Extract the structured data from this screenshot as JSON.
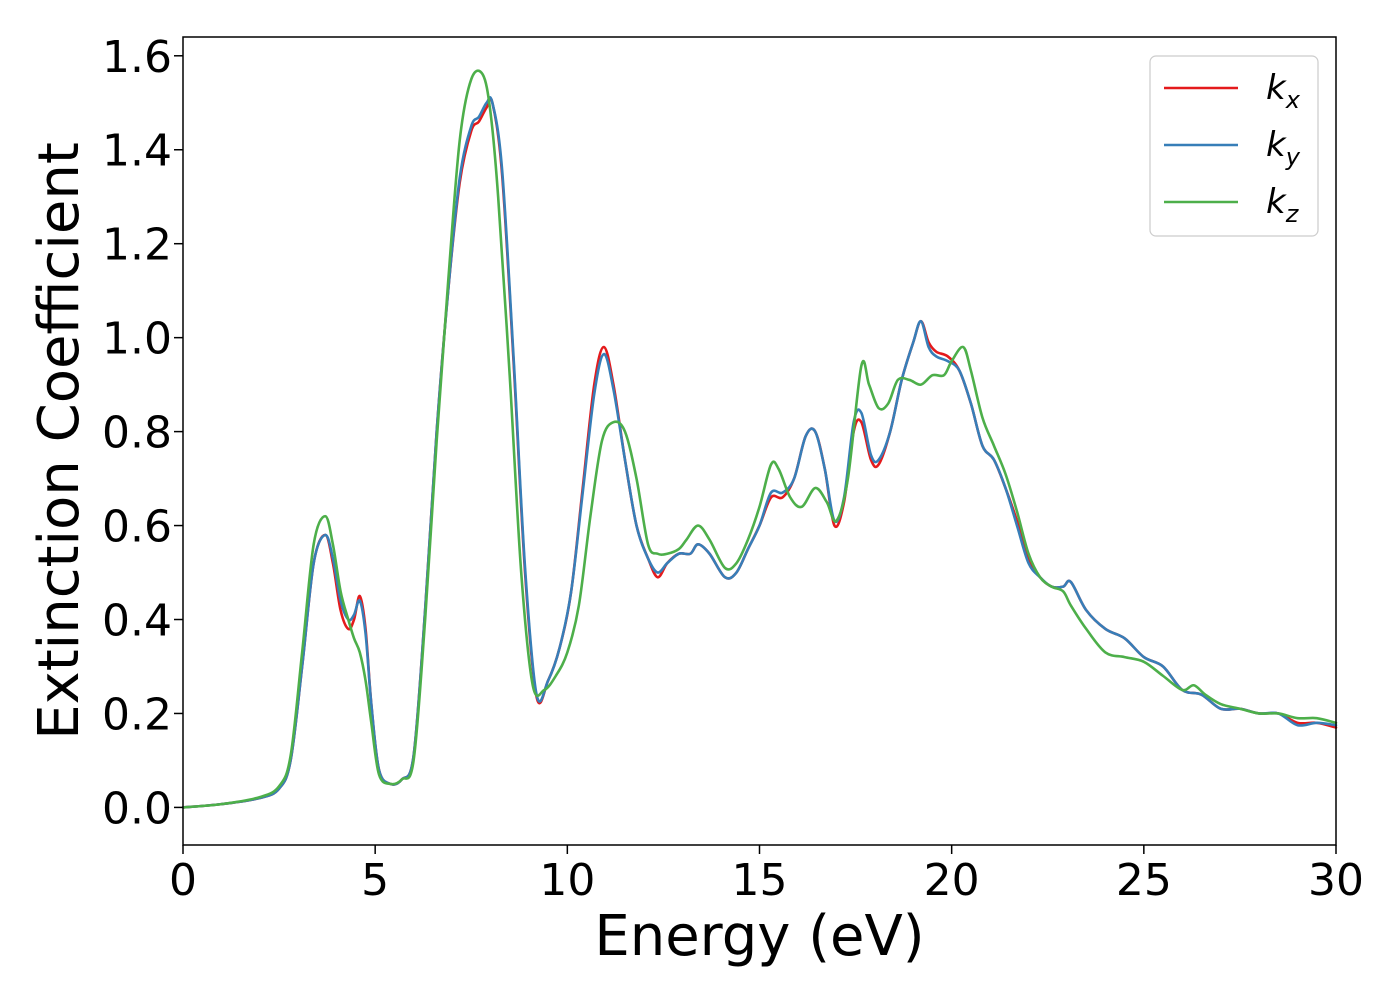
{
  "chart_data": {
    "type": "line",
    "title": "",
    "xlabel": "Energy (eV)",
    "ylabel": "Extinction Coefficient",
    "xlim": [
      0,
      30
    ],
    "ylim": [
      -0.08,
      1.64
    ],
    "xticks": [
      0,
      5,
      10,
      15,
      20,
      25,
      30
    ],
    "xtick_labels": [
      "0",
      "5",
      "10",
      "15",
      "20",
      "25",
      "30"
    ],
    "yticks": [
      0.0,
      0.2,
      0.4,
      0.6,
      0.8,
      1.0,
      1.2,
      1.4,
      1.6
    ],
    "ytick_labels": [
      "0.0",
      "0.2",
      "0.4",
      "0.6",
      "0.8",
      "1.0",
      "1.2",
      "1.4",
      "1.6"
    ],
    "grid": false,
    "legend_position": "top-right",
    "series": [
      {
        "name": "kx",
        "label_base": "k",
        "label_sub": "x",
        "color": "#e41a1c",
        "x": [
          0,
          1,
          2,
          2.5,
          2.8,
          3.1,
          3.4,
          3.7,
          3.9,
          4.1,
          4.3,
          4.45,
          4.6,
          4.75,
          4.9,
          5.1,
          5.4,
          5.7,
          6.0,
          6.3,
          6.6,
          6.9,
          7.2,
          7.5,
          7.7,
          7.9,
          8.05,
          8.3,
          8.6,
          8.9,
          9.2,
          9.5,
          9.8,
          10.1,
          10.4,
          10.7,
          10.95,
          11.2,
          11.5,
          11.8,
          12.1,
          12.35,
          12.6,
          12.9,
          13.2,
          13.4,
          13.7,
          14.1,
          14.4,
          14.7,
          15.0,
          15.3,
          15.6,
          15.9,
          16.2,
          16.45,
          16.7,
          16.95,
          17.2,
          17.45,
          17.65,
          17.9,
          18.1,
          18.4,
          18.7,
          19.0,
          19.2,
          19.4,
          19.6,
          19.9,
          20.2,
          20.5,
          20.8,
          21.1,
          21.4,
          21.7,
          22.0,
          22.3,
          22.6,
          22.9,
          23.1,
          23.5,
          24.0,
          24.5,
          25.0,
          25.5,
          26.0,
          26.5,
          27.0,
          27.5,
          28.0,
          28.5,
          29.0,
          29.5,
          30.0
        ],
        "values": [
          0.0,
          0.007,
          0.02,
          0.04,
          0.1,
          0.3,
          0.52,
          0.58,
          0.52,
          0.42,
          0.38,
          0.4,
          0.45,
          0.38,
          0.22,
          0.08,
          0.05,
          0.06,
          0.11,
          0.42,
          0.8,
          1.1,
          1.33,
          1.44,
          1.46,
          1.49,
          1.5,
          1.35,
          0.95,
          0.5,
          0.235,
          0.27,
          0.34,
          0.46,
          0.68,
          0.9,
          0.98,
          0.9,
          0.74,
          0.6,
          0.53,
          0.49,
          0.52,
          0.54,
          0.54,
          0.56,
          0.54,
          0.49,
          0.5,
          0.55,
          0.6,
          0.66,
          0.66,
          0.7,
          0.79,
          0.8,
          0.72,
          0.6,
          0.65,
          0.8,
          0.82,
          0.74,
          0.73,
          0.8,
          0.91,
          0.99,
          1.035,
          0.99,
          0.97,
          0.96,
          0.93,
          0.86,
          0.77,
          0.74,
          0.68,
          0.61,
          0.53,
          0.49,
          0.47,
          0.47,
          0.48,
          0.42,
          0.38,
          0.36,
          0.32,
          0.3,
          0.25,
          0.24,
          0.21,
          0.21,
          0.2,
          0.2,
          0.18,
          0.18,
          0.17
        ]
      },
      {
        "name": "ky",
        "label_base": "k",
        "label_sub": "y",
        "color": "#377eb8",
        "x": [
          0,
          1,
          2,
          2.5,
          2.8,
          3.1,
          3.4,
          3.7,
          3.9,
          4.1,
          4.3,
          4.45,
          4.6,
          4.75,
          4.9,
          5.1,
          5.4,
          5.7,
          6.0,
          6.3,
          6.6,
          6.9,
          7.2,
          7.5,
          7.7,
          7.9,
          8.05,
          8.3,
          8.6,
          8.9,
          9.2,
          9.5,
          9.8,
          10.1,
          10.4,
          10.7,
          10.95,
          11.2,
          11.5,
          11.8,
          12.1,
          12.35,
          12.6,
          12.9,
          13.2,
          13.4,
          13.7,
          14.1,
          14.4,
          14.7,
          15.0,
          15.3,
          15.6,
          15.9,
          16.2,
          16.45,
          16.7,
          16.95,
          17.2,
          17.45,
          17.65,
          17.9,
          18.1,
          18.4,
          18.7,
          19.0,
          19.2,
          19.4,
          19.6,
          19.9,
          20.2,
          20.5,
          20.8,
          21.1,
          21.4,
          21.7,
          22.0,
          22.3,
          22.6,
          22.9,
          23.1,
          23.5,
          24.0,
          24.5,
          25.0,
          25.5,
          26.0,
          26.5,
          27.0,
          27.5,
          28.0,
          28.5,
          29.0,
          29.5,
          30.0
        ],
        "values": [
          0.0,
          0.007,
          0.02,
          0.04,
          0.1,
          0.3,
          0.52,
          0.58,
          0.53,
          0.44,
          0.4,
          0.41,
          0.44,
          0.37,
          0.22,
          0.08,
          0.05,
          0.06,
          0.11,
          0.42,
          0.8,
          1.1,
          1.34,
          1.45,
          1.47,
          1.5,
          1.5,
          1.36,
          0.96,
          0.51,
          0.24,
          0.27,
          0.34,
          0.46,
          0.67,
          0.88,
          0.965,
          0.89,
          0.74,
          0.6,
          0.53,
          0.5,
          0.52,
          0.54,
          0.54,
          0.56,
          0.54,
          0.49,
          0.5,
          0.55,
          0.6,
          0.67,
          0.67,
          0.7,
          0.79,
          0.8,
          0.72,
          0.61,
          0.66,
          0.82,
          0.84,
          0.75,
          0.74,
          0.8,
          0.91,
          0.99,
          1.035,
          0.98,
          0.96,
          0.95,
          0.93,
          0.86,
          0.77,
          0.74,
          0.68,
          0.6,
          0.52,
          0.49,
          0.47,
          0.47,
          0.48,
          0.42,
          0.38,
          0.36,
          0.32,
          0.3,
          0.25,
          0.24,
          0.21,
          0.21,
          0.2,
          0.2,
          0.175,
          0.18,
          0.175
        ]
      },
      {
        "name": "kz",
        "label_base": "k",
        "label_sub": "z",
        "color": "#4daf4a",
        "x": [
          0,
          1,
          2,
          2.5,
          2.8,
          3.1,
          3.4,
          3.7,
          3.9,
          4.1,
          4.3,
          4.45,
          4.6,
          4.75,
          4.9,
          5.1,
          5.4,
          5.7,
          6.0,
          6.3,
          6.6,
          6.9,
          7.2,
          7.5,
          7.8,
          8.0,
          8.2,
          8.5,
          8.8,
          9.1,
          9.4,
          9.7,
          10.0,
          10.3,
          10.6,
          10.9,
          11.2,
          11.5,
          11.8,
          12.1,
          12.35,
          12.6,
          12.9,
          13.1,
          13.4,
          13.7,
          14.1,
          14.4,
          14.7,
          15.0,
          15.3,
          15.5,
          15.8,
          16.1,
          16.45,
          16.75,
          17.0,
          17.3,
          17.65,
          17.85,
          18.1,
          18.35,
          18.6,
          18.9,
          19.2,
          19.5,
          19.8,
          20.0,
          20.3,
          20.5,
          20.8,
          21.1,
          21.4,
          21.7,
          22.0,
          22.3,
          22.6,
          22.9,
          23.1,
          23.5,
          24.0,
          24.5,
          25.0,
          25.5,
          26.0,
          26.3,
          26.6,
          27.0,
          27.5,
          28.0,
          28.5,
          29.0,
          29.5,
          30.0
        ],
        "values": [
          0.0,
          0.007,
          0.022,
          0.045,
          0.11,
          0.33,
          0.56,
          0.62,
          0.56,
          0.46,
          0.4,
          0.36,
          0.33,
          0.27,
          0.18,
          0.07,
          0.05,
          0.06,
          0.1,
          0.4,
          0.78,
          1.12,
          1.42,
          1.55,
          1.56,
          1.48,
          1.3,
          0.92,
          0.5,
          0.26,
          0.25,
          0.28,
          0.33,
          0.43,
          0.62,
          0.78,
          0.82,
          0.8,
          0.7,
          0.56,
          0.54,
          0.54,
          0.55,
          0.57,
          0.6,
          0.57,
          0.51,
          0.52,
          0.57,
          0.64,
          0.73,
          0.72,
          0.66,
          0.64,
          0.68,
          0.65,
          0.61,
          0.7,
          0.94,
          0.9,
          0.85,
          0.86,
          0.91,
          0.91,
          0.9,
          0.92,
          0.92,
          0.95,
          0.98,
          0.93,
          0.83,
          0.77,
          0.71,
          0.63,
          0.54,
          0.49,
          0.47,
          0.46,
          0.43,
          0.38,
          0.33,
          0.32,
          0.31,
          0.28,
          0.25,
          0.26,
          0.24,
          0.22,
          0.21,
          0.2,
          0.2,
          0.19,
          0.19,
          0.18
        ]
      }
    ]
  }
}
